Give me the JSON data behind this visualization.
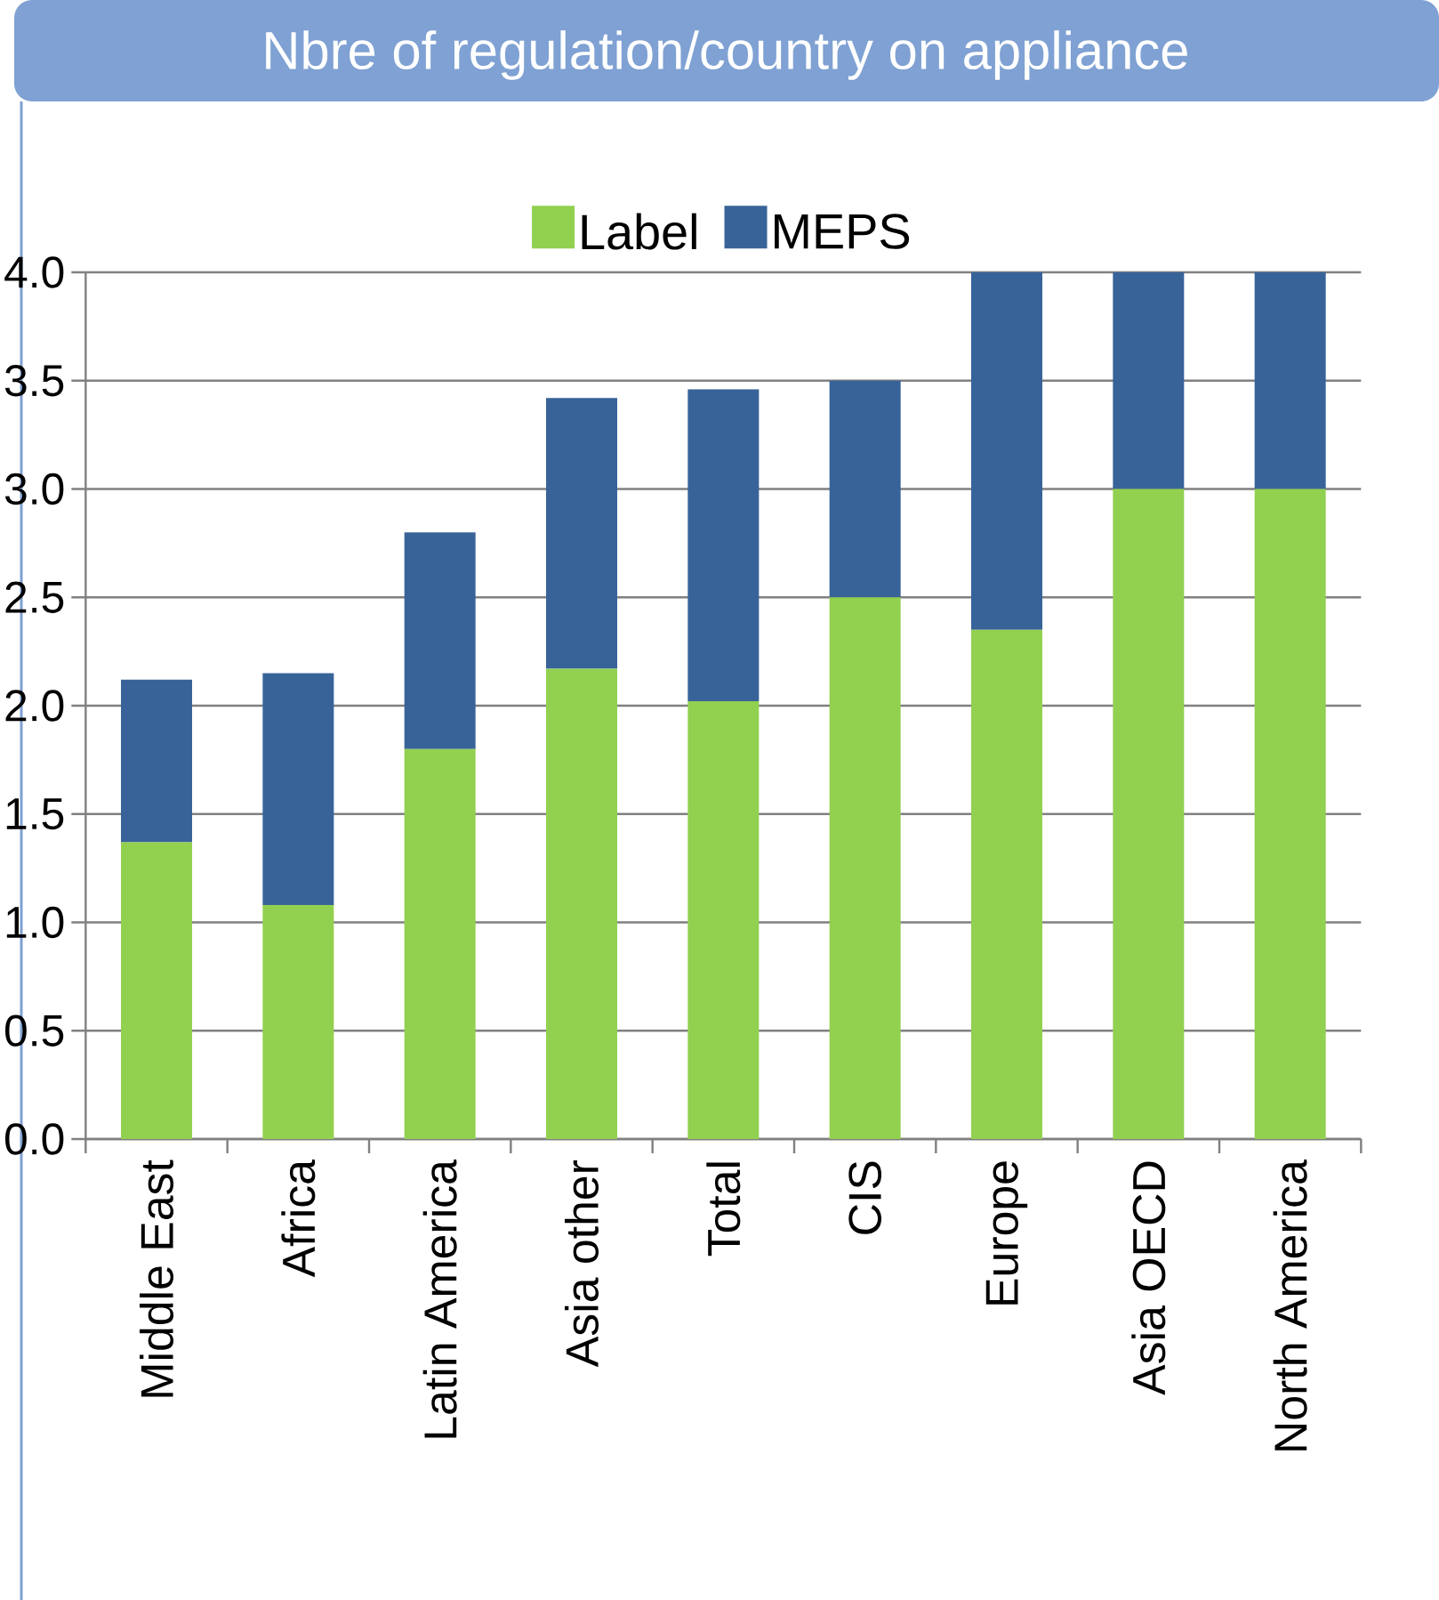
{
  "chart_data": {
    "type": "bar",
    "title": "Nbre of regulation/country on appliance",
    "stacked": true,
    "categories": [
      "Middle East",
      "Africa",
      "Latin America",
      "Asia other",
      "Total",
      "CIS",
      "Europe",
      "Asia OECD",
      "North America"
    ],
    "series": [
      {
        "name": "Label",
        "color": "#92d050",
        "values": [
          1.37,
          1.08,
          1.8,
          2.17,
          2.02,
          2.5,
          2.35,
          3.0,
          3.0
        ]
      },
      {
        "name": "MEPS",
        "color": "#386399",
        "values": [
          0.75,
          1.07,
          1.0,
          1.25,
          1.44,
          1.0,
          1.65,
          1.0,
          1.0
        ]
      }
    ],
    "ylim": [
      0,
      4
    ],
    "yticks": [
      {
        "value": 0,
        "label": "0.0"
      },
      {
        "value": 0.5,
        "label": "0.5"
      },
      {
        "value": 1,
        "label": "1.0"
      },
      {
        "value": 1.5,
        "label": "1.5"
      },
      {
        "value": 2,
        "label": "2.0"
      },
      {
        "value": 2.5,
        "label": "2.5"
      },
      {
        "value": 3,
        "label": "3.0"
      },
      {
        "value": 3.5,
        "label": "3.5"
      },
      {
        "value": 4,
        "label": "4.0"
      }
    ],
    "grid": "y",
    "legend": "top"
  }
}
